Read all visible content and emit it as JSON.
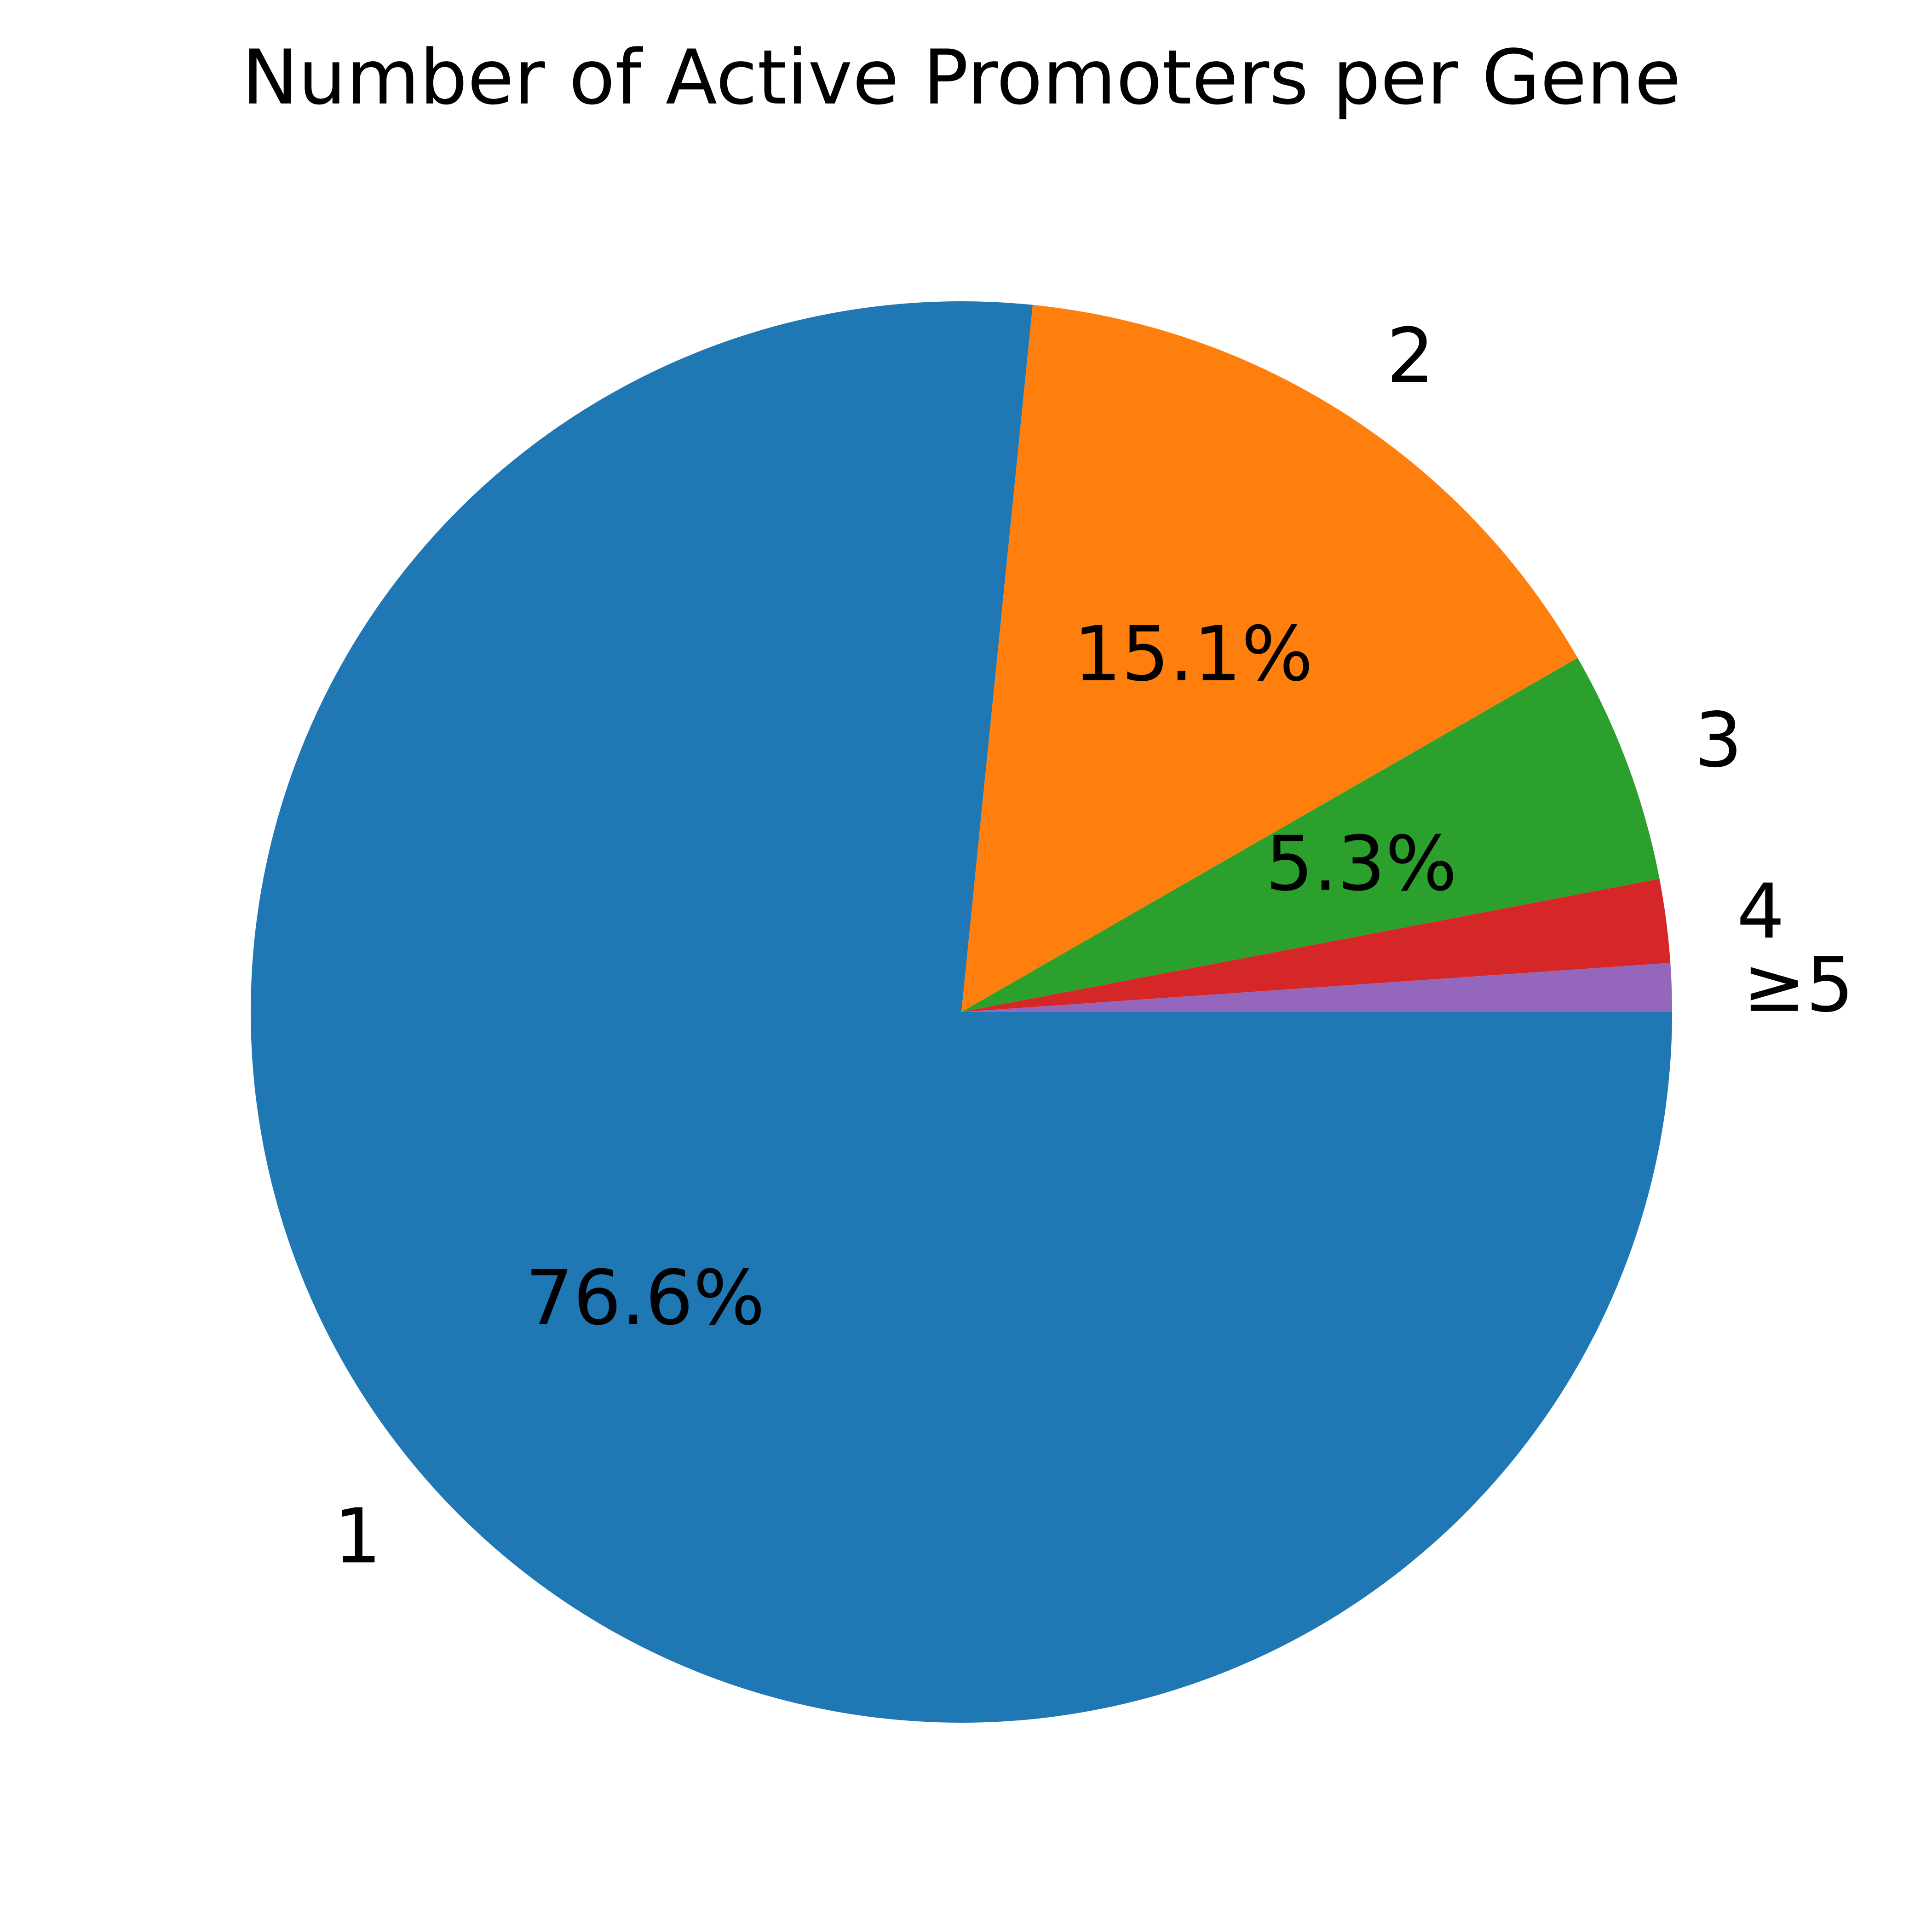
{
  "chart_data": {
    "type": "pie",
    "title": "Number of Active Promoters per Gene",
    "start_angle_deg": 0,
    "direction": "clockwise",
    "slices": [
      {
        "label": "1",
        "value": 76.6,
        "pct_label": "76.6%",
        "color": "#1f77b4"
      },
      {
        "label": "2",
        "value": 15.1,
        "pct_label": "15.1%",
        "color": "#ff7f0e"
      },
      {
        "label": "3",
        "value": 5.3,
        "pct_label": "5.3%",
        "color": "#2ca02c"
      },
      {
        "label": "4",
        "value": 1.9,
        "pct_label": "",
        "color": "#d62728"
      },
      {
        "label": "≥5",
        "value": 1.1,
        "pct_label": "",
        "color": "#9467bd"
      }
    ]
  }
}
